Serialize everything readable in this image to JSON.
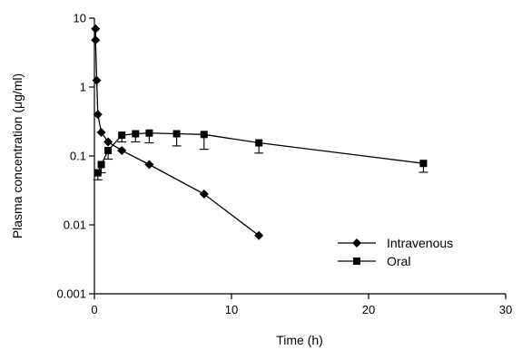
{
  "chart_data": {
    "type": "line",
    "title": "",
    "xlabel": "Time (h)",
    "ylabel": "Plasma concentration (μg/ml)",
    "x_scale": "linear",
    "y_scale": "log",
    "xlim": [
      0,
      30
    ],
    "ylim": [
      0.001,
      10
    ],
    "x_ticks": [
      0,
      10,
      20,
      30
    ],
    "x_tick_labels": [
      "0",
      "10",
      "20",
      "30"
    ],
    "y_ticks": [
      0.001,
      0.01,
      0.1,
      1,
      10
    ],
    "y_tick_labels": [
      "0.001",
      "0.01",
      "0.1",
      "1",
      "10"
    ],
    "grid": false,
    "legend_position": "bottom-right",
    "series": [
      {
        "name": "Intravenous",
        "marker": "diamond",
        "color": "#000000",
        "x": [
          0.083,
          0.083,
          0.167,
          0.25,
          0.5,
          1,
          2,
          4,
          8,
          12
        ],
        "y": [
          7.0,
          4.8,
          1.25,
          0.4,
          0.22,
          0.16,
          0.12,
          0.075,
          0.028,
          0.007
        ]
      },
      {
        "name": "Oral",
        "marker": "square",
        "color": "#000000",
        "x": [
          0.25,
          0.5,
          1,
          2,
          3,
          4,
          6,
          8,
          12,
          24
        ],
        "y": [
          0.057,
          0.075,
          0.12,
          0.2,
          0.21,
          0.215,
          0.21,
          0.205,
          0.155,
          0.078
        ],
        "error": [
          0.012,
          0.018,
          0.03,
          0.04,
          0.05,
          0.06,
          0.07,
          0.08,
          0.045,
          0.02
        ]
      }
    ]
  }
}
